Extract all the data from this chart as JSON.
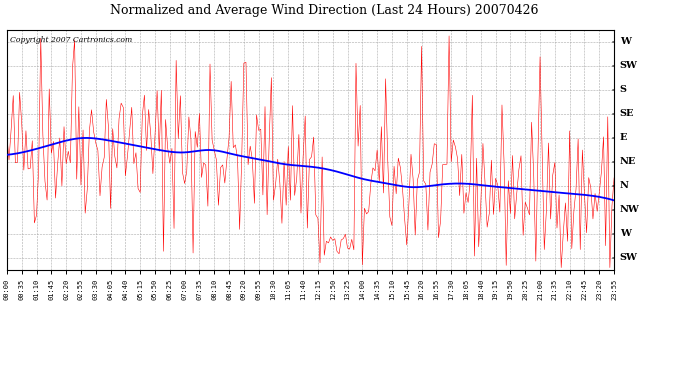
{
  "title": "Normalized and Average Wind Direction (Last 24 Hours) 20070426",
  "copyright_text": "Copyright 2007 Cartronics.com",
  "bg_color": "#ffffff",
  "plot_bg_color": "#ffffff",
  "grid_color": "#aaaaaa",
  "red_color": "#ff0000",
  "blue_color": "#0000ff",
  "ytick_labels": [
    "W",
    "SW",
    "S",
    "SE",
    "E",
    "NE",
    "N",
    "NW",
    "W",
    "SW"
  ],
  "ytick_values": [
    9,
    8,
    7,
    6,
    5,
    4,
    3,
    2,
    1,
    0
  ],
  "ylim": [
    -0.5,
    9.5
  ],
  "n_points": 288,
  "figsize": [
    6.9,
    3.75
  ],
  "dpi": 100
}
